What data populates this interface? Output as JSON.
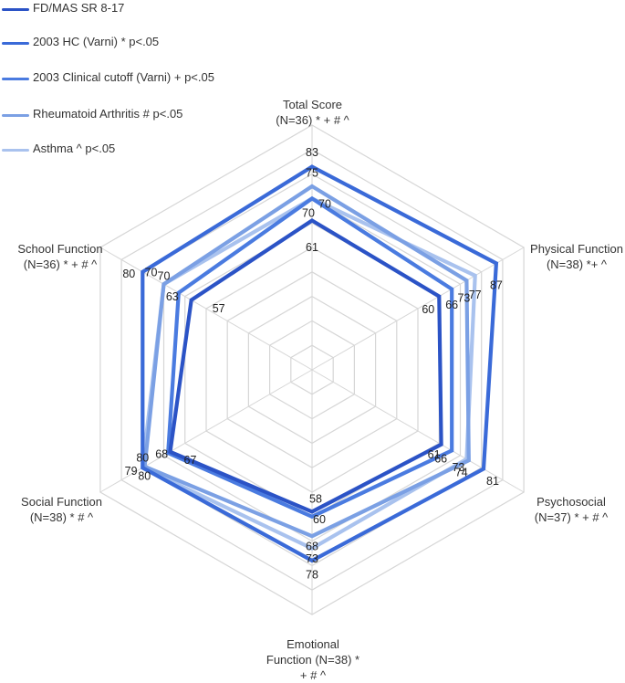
{
  "chart_data": {
    "type": "radar",
    "axes": [
      {
        "line1": "Total Score",
        "line2": "(N=36) * + #  ^",
        "line3": ""
      },
      {
        "line1": "Physical Function",
        "line2": "(N=38) *+ ^",
        "line3": ""
      },
      {
        "line1": "Psychosocial",
        "line2": "(N=37) * + #  ^",
        "line3": ""
      },
      {
        "line1": "Emotional",
        "line2": "Function (N=38) *",
        "line3": "+ #  ^"
      },
      {
        "line1": "Social Function",
        "line2": "(N=38) * #  ^",
        "line3": ""
      },
      {
        "line1": "School Function",
        "line2": "(N=36) * + #  ^",
        "line3": ""
      }
    ],
    "rmax": 100,
    "grid_levels": [
      10,
      20,
      30,
      40,
      50,
      60,
      70,
      80,
      90,
      100
    ],
    "series": [
      {
        "name": "FD/MAS SR 8-17",
        "color": "#2b53c6",
        "values": [
          61,
          60,
          61,
          58,
          67,
          57
        ]
      },
      {
        "name": "2003 HC (Varni) * p<.05",
        "color": "#3a6ad8",
        "values": [
          83,
          87,
          81,
          78,
          80,
          80
        ]
      },
      {
        "name": "2003 Clinical  cutoff (Varni) + p<.05",
        "color": "#4a7be0",
        "values": [
          70,
          66,
          66,
          60,
          68,
          63
        ]
      },
      {
        "name": "Rheumatoid Arthritis  # p<.05",
        "color": "#7ba0e4",
        "values": [
          75,
          73,
          74,
          68,
          79,
          70
        ]
      },
      {
        "name": "Asthma ^ p<.05",
        "color": "#a9c2ee",
        "values": [
          70,
          77,
          73,
          73,
          80,
          70
        ]
      }
    ],
    "legend": "top-left"
  }
}
